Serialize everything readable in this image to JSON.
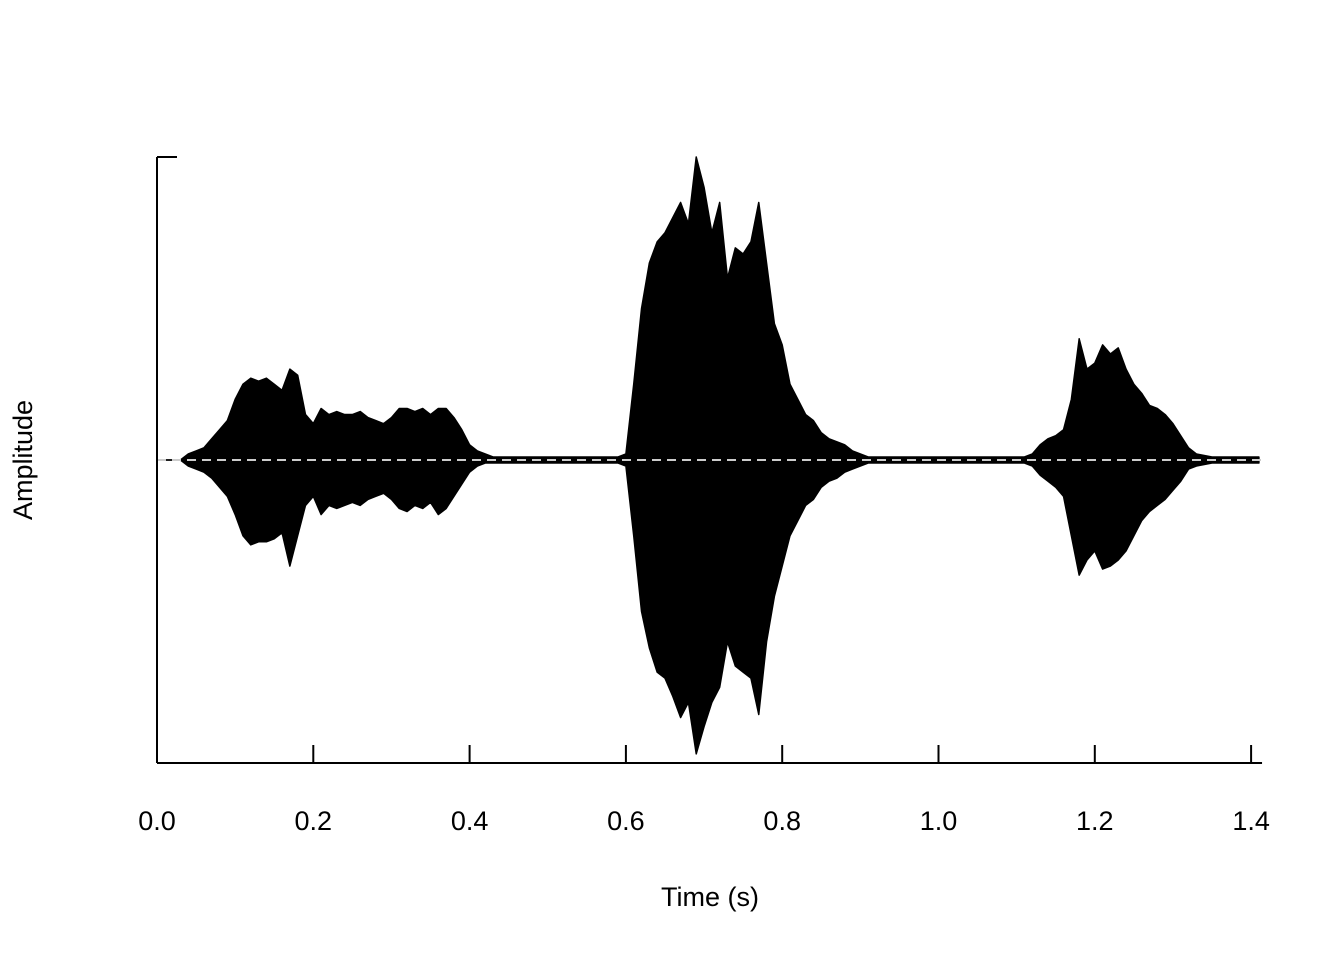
{
  "chart_data": {
    "type": "area",
    "x_label": "Time (s)",
    "y_label": "Amplitude",
    "xlim": [
      0,
      1.414
    ],
    "ylim": [
      -1,
      1
    ],
    "xticks": [
      {
        "value": 0,
        "label": "0.0"
      },
      0.2,
      0.4,
      0.6,
      0.8,
      {
        "value": 1,
        "label": "1.0"
      },
      1.2,
      1.4
    ],
    "reference_line": {
      "value": 0,
      "color": "#cccccc",
      "dashed": true
    },
    "x": [
      0,
      0.01,
      0.02,
      0.03,
      0.04,
      0.05,
      0.06,
      0.07,
      0.08,
      0.09,
      0.1,
      0.11,
      0.12,
      0.13,
      0.14,
      0.15,
      0.16,
      0.17,
      0.18,
      0.19,
      0.2,
      0.21,
      0.22,
      0.23,
      0.24,
      0.25,
      0.26,
      0.27,
      0.28,
      0.29,
      0.3,
      0.31,
      0.32,
      0.33,
      0.34,
      0.35,
      0.36,
      0.37,
      0.38,
      0.39,
      0.4,
      0.41,
      0.42,
      0.43,
      0.44,
      0.45,
      0.46,
      0.47,
      0.48,
      0.49,
      0.5,
      0.51,
      0.52,
      0.53,
      0.54,
      0.55,
      0.56,
      0.57,
      0.58,
      0.59,
      0.6,
      0.61,
      0.62,
      0.63,
      0.64,
      0.65,
      0.66,
      0.67,
      0.68,
      0.69,
      0.7,
      0.71,
      0.72,
      0.73,
      0.74,
      0.75,
      0.76,
      0.77,
      0.78,
      0.79,
      0.8,
      0.81,
      0.82,
      0.83,
      0.84,
      0.85,
      0.86,
      0.87,
      0.88,
      0.89,
      0.9,
      0.91,
      0.92,
      0.93,
      0.94,
      0.95,
      0.96,
      0.97,
      0.98,
      0.99,
      1,
      1.01,
      1.02,
      1.03,
      1.04,
      1.05,
      1.06,
      1.07,
      1.08,
      1.09,
      1.1,
      1.11,
      1.12,
      1.13,
      1.14,
      1.15,
      1.16,
      1.17,
      1.18,
      1.19,
      1.2,
      1.21,
      1.22,
      1.23,
      1.24,
      1.25,
      1.26,
      1.27,
      1.28,
      1.29,
      1.3,
      1.31,
      1.32,
      1.33,
      1.34,
      1.35,
      1.36,
      1.37,
      1.38,
      1.39,
      1.4,
      1.41
    ],
    "series": [
      {
        "color": "#000000",
        "values": [
          0,
          0,
          0,
          0,
          0.02,
          0.03,
          0.04,
          0.07,
          0.1,
          0.13,
          0.2,
          0.25,
          0.27,
          0.26,
          0.27,
          0.25,
          0.23,
          0.3,
          0.28,
          0.15,
          0.12,
          0.17,
          0.15,
          0.16,
          0.15,
          0.15,
          0.16,
          0.14,
          0.13,
          0.12,
          0.14,
          0.17,
          0.17,
          0.16,
          0.17,
          0.15,
          0.17,
          0.17,
          0.14,
          0.1,
          0.05,
          0.03,
          0.02,
          0.01,
          0.01,
          0.01,
          0.01,
          0.01,
          0.01,
          0.01,
          0.01,
          0.01,
          0.01,
          0.01,
          0.01,
          0.01,
          0.01,
          0.01,
          0.01,
          0.01,
          0.02,
          0.25,
          0.5,
          0.65,
          0.72,
          0.75,
          0.8,
          0.85,
          0.78,
          1,
          0.9,
          0.75,
          0.85,
          0.6,
          0.7,
          0.68,
          0.72,
          0.85,
          0.65,
          0.45,
          0.38,
          0.25,
          0.2,
          0.15,
          0.13,
          0.09,
          0.07,
          0.06,
          0.05,
          0.03,
          0.02,
          0.01,
          0.01,
          0.01,
          0.01,
          0.01,
          0.01,
          0.01,
          0.01,
          0.01,
          0.01,
          0.01,
          0.01,
          0.01,
          0.01,
          0.01,
          0.01,
          0.01,
          0.01,
          0.01,
          0.01,
          0.01,
          0.02,
          0.05,
          0.07,
          0.08,
          0.1,
          0.2,
          0.4,
          0.3,
          0.32,
          0.38,
          0.35,
          0.37,
          0.3,
          0.25,
          0.22,
          0.18,
          0.17,
          0.15,
          0.12,
          0.08,
          0.04,
          0.02,
          0.015,
          0.01,
          0.01,
          0.01,
          0.01,
          0.01,
          0.01,
          0.01
        ]
      },
      {
        "color": "#000000",
        "values": [
          0,
          0,
          0,
          0,
          -0.02,
          -0.03,
          -0.04,
          -0.06,
          -0.09,
          -0.12,
          -0.18,
          -0.25,
          -0.28,
          -0.27,
          -0.27,
          -0.26,
          -0.24,
          -0.35,
          -0.25,
          -0.15,
          -0.12,
          -0.18,
          -0.15,
          -0.16,
          -0.15,
          -0.14,
          -0.15,
          -0.13,
          -0.12,
          -0.11,
          -0.13,
          -0.16,
          -0.17,
          -0.15,
          -0.16,
          -0.14,
          -0.18,
          -0.16,
          -0.12,
          -0.08,
          -0.04,
          -0.02,
          -0.01,
          -0.01,
          -0.01,
          -0.01,
          -0.01,
          -0.01,
          -0.01,
          -0.01,
          -0.01,
          -0.01,
          -0.01,
          -0.01,
          -0.01,
          -0.01,
          -0.01,
          -0.01,
          -0.01,
          -0.01,
          -0.02,
          -0.25,
          -0.5,
          -0.62,
          -0.7,
          -0.72,
          -0.78,
          -0.85,
          -0.8,
          -0.97,
          -0.88,
          -0.8,
          -0.75,
          -0.6,
          -0.68,
          -0.7,
          -0.72,
          -0.84,
          -0.6,
          -0.45,
          -0.35,
          -0.25,
          -0.2,
          -0.15,
          -0.13,
          -0.09,
          -0.07,
          -0.06,
          -0.04,
          -0.03,
          -0.02,
          -0.01,
          -0.01,
          -0.01,
          -0.01,
          -0.01,
          -0.01,
          -0.01,
          -0.01,
          -0.01,
          -0.01,
          -0.01,
          -0.01,
          -0.01,
          -0.01,
          -0.01,
          -0.01,
          -0.01,
          -0.01,
          -0.01,
          -0.01,
          -0.01,
          -0.02,
          -0.05,
          -0.07,
          -0.09,
          -0.12,
          -0.25,
          -0.38,
          -0.33,
          -0.3,
          -0.36,
          -0.35,
          -0.33,
          -0.3,
          -0.25,
          -0.2,
          -0.17,
          -0.15,
          -0.13,
          -0.1,
          -0.07,
          -0.03,
          -0.02,
          -0.015,
          -0.01,
          -0.01,
          -0.01,
          -0.01,
          -0.01,
          -0.01,
          -0.01
        ]
      }
    ]
  }
}
